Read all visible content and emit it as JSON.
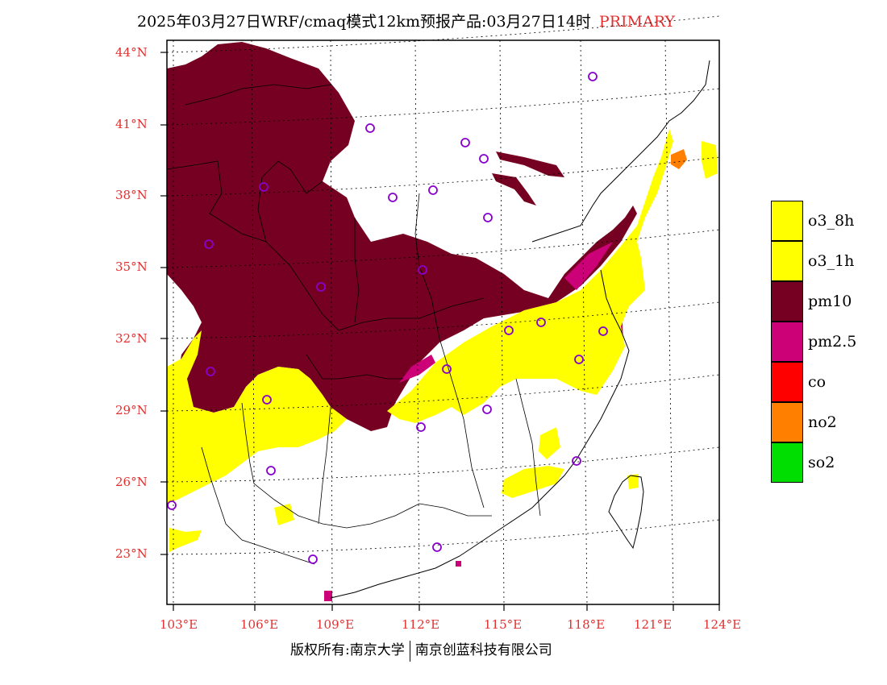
{
  "header": {
    "title": "2025年03月27日WRF/cmaq模式12km预报产品:03月27日14时",
    "tag": "PRIMARY"
  },
  "axes": {
    "lat_labels": [
      "44°N",
      "41°N",
      "38°N",
      "35°N",
      "32°N",
      "29°N",
      "26°N",
      "23°N"
    ],
    "lon_labels": [
      "103°E",
      "106°E",
      "109°E",
      "112°E",
      "115°E",
      "118°E",
      "121°E",
      "124°E"
    ]
  },
  "legend": [
    {
      "label": "o3_8h",
      "color": "#ffff00"
    },
    {
      "label": "o3_1h",
      "color": "#ffff00"
    },
    {
      "label": "pm10",
      "color": "#760022"
    },
    {
      "label": "pm2.5",
      "color": "#cc0077"
    },
    {
      "label": "co",
      "color": "#ff0000"
    },
    {
      "label": "no2",
      "color": "#ff8000"
    },
    {
      "label": "so2",
      "color": "#00dd00"
    }
  ],
  "footer": {
    "left": "版权所有:南京大学",
    "right": "南京创蓝科技有限公司"
  }
}
